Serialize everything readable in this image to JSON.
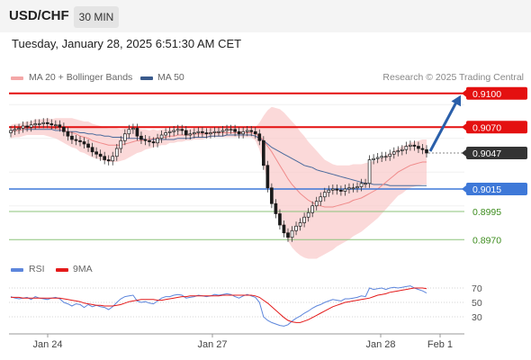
{
  "header": {
    "pair": "USD/CHF",
    "timeframe": "30 MIN"
  },
  "datetime": "Tuesday, January 28, 2025 6:51:30 AM CET",
  "legend": {
    "ma20": "MA 20 + Bollinger Bands",
    "ma50": "MA 50",
    "rsi": "RSI",
    "ma9": "9MA",
    "copyright": "Research © 2025 Trading Central"
  },
  "colors": {
    "bollinger": "#f9c9c9",
    "ma20": "#f08b8b",
    "ma50": "#4a6a9c",
    "resistance": "#e41010",
    "support": "#3e78d8",
    "target": "#3d8c1e",
    "price": "#333333",
    "arrow": "#2a5faa",
    "rsi": "#5d86dc",
    "rsi_ma": "#e41a1a"
  },
  "chart_data": [
    {
      "type": "candlestick",
      "ylim": [
        0.8955,
        0.9115
      ],
      "x_ticks": [
        "Jan 24",
        "Jan 27",
        "Jan 28",
        "Feb 1"
      ],
      "levels": [
        {
          "label": "0.9100",
          "value": 0.91,
          "kind": "resistance"
        },
        {
          "label": "0.9070",
          "value": 0.907,
          "kind": "resistance"
        },
        {
          "label": "0.9047",
          "value": 0.9047,
          "kind": "price"
        },
        {
          "label": "0.9015",
          "value": 0.9015,
          "kind": "support"
        },
        {
          "label": "0.8995",
          "value": 0.8995,
          "kind": "target"
        },
        {
          "label": "0.8970",
          "value": 0.897,
          "kind": "target"
        }
      ],
      "closes": [
        0.9067,
        0.9068,
        0.9069,
        0.9071,
        0.907,
        0.9072,
        0.9073,
        0.9073,
        0.9074,
        0.9073,
        0.9072,
        0.9072,
        0.907,
        0.9066,
        0.9062,
        0.9059,
        0.9058,
        0.9057,
        0.9055,
        0.9052,
        0.9048,
        0.9046,
        0.9044,
        0.9041,
        0.904,
        0.9044,
        0.9051,
        0.9058,
        0.9064,
        0.9068,
        0.9069,
        0.9062,
        0.9059,
        0.9058,
        0.9057,
        0.9056,
        0.906,
        0.9063,
        0.9065,
        0.9066,
        0.9067,
        0.9068,
        0.9067,
        0.9063,
        0.9064,
        0.9065,
        0.9066,
        0.9065,
        0.9064,
        0.9065,
        0.9066,
        0.9066,
        0.9067,
        0.9068,
        0.9068,
        0.9066,
        0.9064,
        0.9066,
        0.9067,
        0.9066,
        0.9064,
        0.9058,
        0.9036,
        0.9016,
        0.9002,
        0.8993,
        0.8983,
        0.8976,
        0.8972,
        0.8978,
        0.8982,
        0.8985,
        0.899,
        0.8994,
        0.9,
        0.9004,
        0.9008,
        0.9012,
        0.9014,
        0.9015,
        0.9014,
        0.9013,
        0.9015,
        0.9016,
        0.9016,
        0.9017,
        0.902,
        0.902,
        0.9041,
        0.9042,
        0.9043,
        0.9044,
        0.9044,
        0.9046,
        0.9048,
        0.9049,
        0.905,
        0.9053,
        0.9054,
        0.9053,
        0.9051,
        0.905,
        0.9047
      ],
      "ma20": [
        0.9066,
        0.9067,
        0.9067,
        0.9068,
        0.9069,
        0.9069,
        0.907,
        0.907,
        0.907,
        0.907,
        0.9069,
        0.9069,
        0.9068,
        0.9067,
        0.9066,
        0.9065,
        0.9064,
        0.9062,
        0.9061,
        0.906,
        0.9058,
        0.9057,
        0.9056,
        0.9055,
        0.9054,
        0.9054,
        0.9054,
        0.9054,
        0.9055,
        0.9056,
        0.9057,
        0.9058,
        0.9058,
        0.9059,
        0.9059,
        0.906,
        0.906,
        0.9061,
        0.9061,
        0.9062,
        0.9062,
        0.9063,
        0.9063,
        0.9063,
        0.9063,
        0.9064,
        0.9064,
        0.9064,
        0.9064,
        0.9065,
        0.9065,
        0.9065,
        0.9065,
        0.9065,
        0.9065,
        0.9065,
        0.9065,
        0.9065,
        0.9065,
        0.9065,
        0.9064,
        0.9062,
        0.9058,
        0.9053,
        0.9048,
        0.9042,
        0.9036,
        0.903,
        0.9024,
        0.9019,
        0.9015,
        0.9011,
        0.9008,
        0.9005,
        0.9003,
        0.9001,
        0.9,
        0.8999,
        0.8999,
        0.8999,
        0.9,
        0.9001,
        0.9002,
        0.9003,
        0.9005,
        0.9006,
        0.9007,
        0.9009,
        0.9011,
        0.9013,
        0.9015,
        0.9018,
        0.9021,
        0.9024,
        0.9027,
        0.903,
        0.9032,
        0.9034,
        0.9036,
        0.9037,
        0.9038,
        0.9039,
        0.9039
      ],
      "ma50": [
        0.9067,
        0.9067,
        0.9067,
        0.9068,
        0.9068,
        0.9068,
        0.9068,
        0.9068,
        0.9068,
        0.9068,
        0.9068,
        0.9067,
        0.9067,
        0.9067,
        0.9066,
        0.9066,
        0.9066,
        0.9065,
        0.9065,
        0.9064,
        0.9064,
        0.9063,
        0.9063,
        0.9062,
        0.9062,
        0.9061,
        0.9061,
        0.9061,
        0.906,
        0.906,
        0.906,
        0.906,
        0.906,
        0.9059,
        0.9059,
        0.9059,
        0.9059,
        0.9059,
        0.9059,
        0.9059,
        0.9059,
        0.906,
        0.906,
        0.906,
        0.906,
        0.9061,
        0.9061,
        0.9061,
        0.9061,
        0.9062,
        0.9062,
        0.9062,
        0.9062,
        0.9063,
        0.9063,
        0.9063,
        0.9063,
        0.9063,
        0.9063,
        0.9063,
        0.9062,
        0.906,
        0.9058,
        0.9055,
        0.9052,
        0.905,
        0.9048,
        0.9046,
        0.9044,
        0.9042,
        0.904,
        0.9038,
        0.9036,
        0.9035,
        0.9034,
        0.9032,
        0.9031,
        0.903,
        0.9029,
        0.9028,
        0.9027,
        0.9026,
        0.9025,
        0.9024,
        0.9023,
        0.9022,
        0.9021,
        0.902,
        0.902,
        0.9019,
        0.9019,
        0.9019,
        0.9019,
        0.9018,
        0.9018,
        0.9018,
        0.9018,
        0.9018,
        0.9018,
        0.9018,
        0.9018,
        0.9018,
        0.9018
      ],
      "band_width": [
        0.0006,
        0.0006,
        0.0006,
        0.0006,
        0.0006,
        0.0006,
        0.0007,
        0.0007,
        0.0007,
        0.0008,
        0.0008,
        0.0009,
        0.001,
        0.0011,
        0.0012,
        0.0013,
        0.0013,
        0.0014,
        0.0014,
        0.0015,
        0.0015,
        0.0015,
        0.0015,
        0.0015,
        0.0015,
        0.0015,
        0.0015,
        0.0014,
        0.0014,
        0.0013,
        0.0012,
        0.0011,
        0.001,
        0.0009,
        0.0008,
        0.0008,
        0.0007,
        0.0007,
        0.0007,
        0.0006,
        0.0006,
        0.0006,
        0.0006,
        0.0005,
        0.0005,
        0.0005,
        0.0005,
        0.0005,
        0.0004,
        0.0004,
        0.0004,
        0.0004,
        0.0004,
        0.0004,
        0.0004,
        0.0004,
        0.0004,
        0.0004,
        0.0004,
        0.0004,
        0.0006,
        0.0012,
        0.0022,
        0.0032,
        0.004,
        0.0045,
        0.005,
        0.0053,
        0.0055,
        0.0056,
        0.0056,
        0.0055,
        0.0054,
        0.0052,
        0.005,
        0.0048,
        0.0045,
        0.0042,
        0.004,
        0.0038,
        0.0036,
        0.0035,
        0.0034,
        0.0033,
        0.0032,
        0.0031,
        0.003,
        0.0029,
        0.0028,
        0.0027,
        0.0026,
        0.0025,
        0.0024,
        0.0023,
        0.0022,
        0.0021,
        0.0021,
        0.002,
        0.002,
        0.002,
        0.002,
        0.002,
        0.002
      ],
      "projection": {
        "from": 0.9047,
        "to": 0.91
      }
    },
    {
      "type": "line",
      "ylim": [
        10,
        80
      ],
      "y_ticks": [
        70,
        50,
        30
      ],
      "series": [
        {
          "name": "RSI",
          "values": [
            58,
            56,
            55,
            56,
            57,
            54,
            58,
            56,
            55,
            54,
            56,
            57,
            55,
            50,
            48,
            45,
            48,
            47,
            43,
            47,
            44,
            46,
            44,
            43,
            40,
            44,
            50,
            55,
            58,
            59,
            60,
            52,
            50,
            51,
            49,
            48,
            52,
            56,
            58,
            58,
            60,
            61,
            60,
            56,
            57,
            58,
            60,
            59,
            58,
            59,
            61,
            60,
            61,
            62,
            61,
            58,
            56,
            59,
            61,
            59,
            57,
            50,
            30,
            25,
            22,
            20,
            18,
            17,
            19,
            24,
            28,
            31,
            35,
            38,
            42,
            45,
            47,
            50,
            52,
            54,
            53,
            52,
            55,
            55,
            56,
            57,
            59,
            58,
            70,
            68,
            69,
            70,
            68,
            70,
            71,
            70,
            71,
            72,
            73,
            70,
            68,
            66,
            63
          ]
        },
        {
          "name": "9MA",
          "values": [
            57,
            57,
            57,
            56,
            56,
            56,
            56,
            56,
            56,
            56,
            56,
            56,
            56,
            55,
            54,
            53,
            52,
            51,
            49,
            48,
            47,
            46,
            46,
            45,
            45,
            45,
            46,
            47,
            49,
            51,
            52,
            53,
            54,
            54,
            54,
            54,
            53,
            53,
            54,
            55,
            56,
            57,
            58,
            58,
            59,
            59,
            59,
            59,
            59,
            59,
            59,
            59,
            60,
            60,
            60,
            60,
            60,
            60,
            60,
            60,
            59,
            57,
            53,
            49,
            44,
            39,
            34,
            29,
            25,
            23,
            22,
            22,
            24,
            26,
            29,
            32,
            35,
            38,
            41,
            44,
            46,
            48,
            50,
            51,
            52,
            53,
            54,
            55,
            56,
            58,
            60,
            61,
            62,
            64,
            65,
            66,
            67,
            68,
            69,
            70,
            70,
            70,
            69
          ]
        }
      ]
    }
  ]
}
